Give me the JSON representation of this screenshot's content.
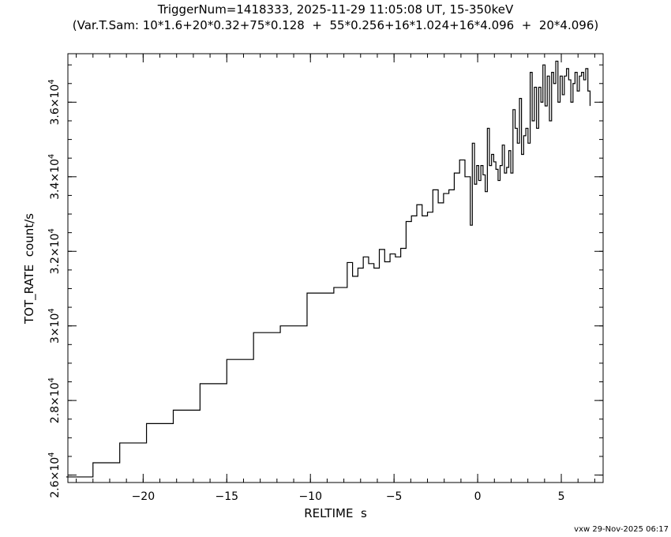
{
  "chart_data": {
    "type": "line",
    "step": true,
    "title": "TriggerNum=1418333, 2025-11-29 11:05:08 UT, 15-350keV",
    "subtitle": "(Var.T.Sam: 10*1.6+20*0.32+75*0.128  +  55*0.256+16*1.024+16*4.096  +  20*4.096)",
    "xlabel": "RELTIME  s",
    "ylabel": "TOT_RATE  count/s",
    "xlim": [
      -24.5,
      7.5
    ],
    "ylim": [
      25800,
      37300
    ],
    "grid": false,
    "x_ticks": [
      {
        "value": -20,
        "label": "−20"
      },
      {
        "value": -15,
        "label": "−15"
      },
      {
        "value": -10,
        "label": "−10"
      },
      {
        "value": -5,
        "label": "−5"
      },
      {
        "value": 0,
        "label": "0"
      },
      {
        "value": 5,
        "label": "5"
      }
    ],
    "y_ticks": [
      {
        "value": 26000,
        "mantissa": "2.6",
        "base": "×10",
        "exp": "4"
      },
      {
        "value": 28000,
        "mantissa": "2.8",
        "base": "×10",
        "exp": "4"
      },
      {
        "value": 30000,
        "mantissa": "3",
        "base": "×10",
        "exp": "4"
      },
      {
        "value": 32000,
        "mantissa": "3.2",
        "base": "×10",
        "exp": "4"
      },
      {
        "value": 34000,
        "mantissa": "3.4",
        "base": "×10",
        "exp": "4"
      },
      {
        "value": 36000,
        "mantissa": "3.6",
        "base": "×10",
        "exp": "4"
      }
    ],
    "x_minor_step": 1,
    "y_minor_step": 500,
    "series": [
      {
        "edges": [
          -24.6,
          -23.0,
          -21.4,
          -19.8,
          -18.2,
          -16.6,
          -15.0,
          -13.4,
          -11.8,
          -10.2,
          -8.6,
          -7.8,
          -7.48,
          -7.16,
          -6.84,
          -6.52,
          -6.2,
          -5.88,
          -5.56,
          -5.24,
          -4.92,
          -4.6,
          -4.28,
          -3.96,
          -3.64,
          -3.32,
          -3.0,
          -2.68,
          -2.36,
          -2.04,
          -1.72,
          -1.4,
          -1.08,
          -0.76,
          -0.44,
          -0.32,
          -0.19,
          -0.06,
          0.06,
          0.19,
          0.32,
          0.45,
          0.58,
          0.7,
          0.83,
          0.96,
          1.09,
          1.22,
          1.34,
          1.47,
          1.6,
          1.73,
          1.86,
          1.98,
          2.11,
          2.24,
          2.37,
          2.5,
          2.62,
          2.75,
          2.88,
          3.01,
          3.14,
          3.26,
          3.39,
          3.52,
          3.65,
          3.78,
          3.9,
          4.03,
          4.16,
          4.29,
          4.42,
          4.54,
          4.67,
          4.8,
          4.93,
          5.06,
          5.18,
          5.31,
          5.44,
          5.57,
          5.7,
          5.82,
          5.95,
          6.08,
          6.21,
          6.34,
          6.46,
          6.59,
          6.72
        ],
        "values": [
          25950,
          26330,
          26860,
          27380,
          27740,
          28450,
          29100,
          29820,
          30000,
          30880,
          31030,
          31700,
          31330,
          31550,
          31850,
          31670,
          31550,
          32050,
          31720,
          31930,
          31850,
          32080,
          32800,
          32950,
          33250,
          32950,
          33050,
          33650,
          33300,
          33550,
          33650,
          34100,
          34450,
          34000,
          32700,
          34900,
          33800,
          34300,
          33900,
          34300,
          34050,
          33600,
          35300,
          34300,
          34600,
          34400,
          34200,
          33900,
          34300,
          34850,
          34100,
          34250,
          34700,
          34100,
          35800,
          35300,
          34900,
          36100,
          34600,
          35100,
          35300,
          34900,
          36800,
          35500,
          36400,
          35300,
          36400,
          36000,
          37000,
          35900,
          36700,
          35500,
          36800,
          36500,
          37100,
          36000,
          36700,
          36200,
          36700,
          36900,
          36600,
          36000,
          36500,
          36800,
          36300,
          36700,
          36800,
          36600,
          36900,
          36300
        ]
      }
    ]
  },
  "footer": "vxw 29-Nov-2025 06:17"
}
